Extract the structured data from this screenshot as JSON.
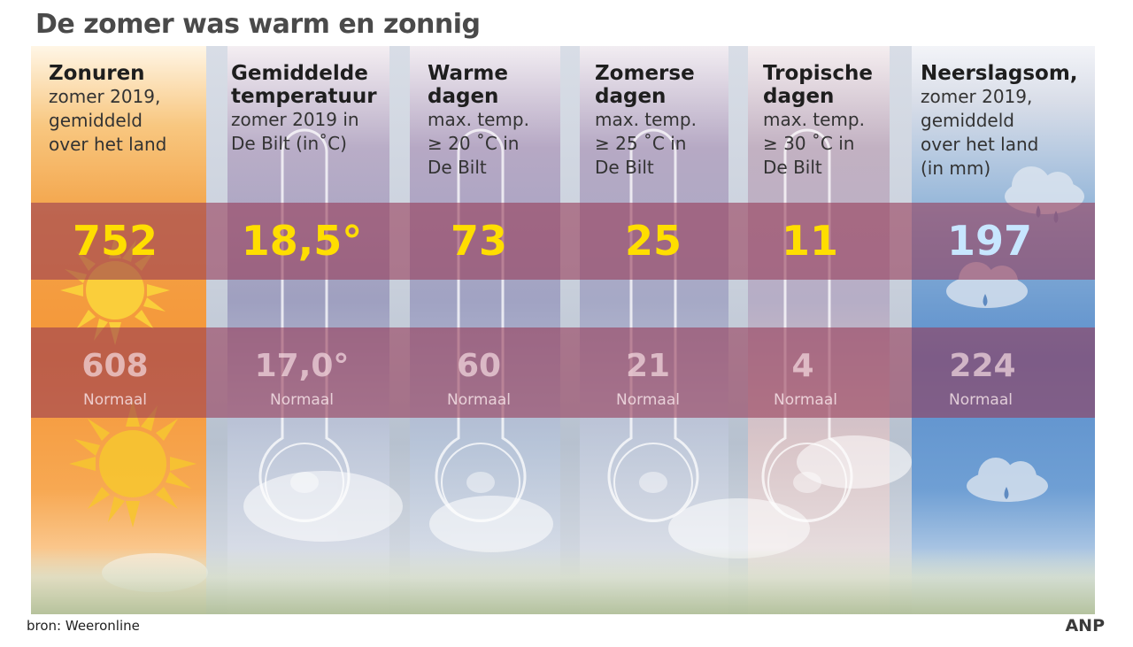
{
  "title": "De zomer was warm en zonnig",
  "source": "bron:  Weeronline",
  "logo": "ANP",
  "columns": [
    {
      "heading": "Zonuren",
      "sub": "zomer 2019,\ngemiddeld\nover het land",
      "value": "752",
      "normal": "608",
      "normal_label": "Normaal",
      "icon": "sun-icon"
    },
    {
      "heading": "Gemiddelde\ntemperatuur",
      "sub": "zomer 2019 in\nDe Bilt (in˚C)",
      "value": "18,5°",
      "normal": "17,0°",
      "normal_label": "Normaal",
      "icon": "thermometer-icon"
    },
    {
      "heading": "Warme\ndagen",
      "sub": "max. temp.\n≥ 20 ˚C in\nDe Bilt",
      "value": "73",
      "normal": "60",
      "normal_label": "Normaal",
      "icon": "thermometer-icon"
    },
    {
      "heading": "Zomerse\ndagen",
      "sub": "max. temp.\n≥ 25 ˚C in\nDe Bilt",
      "value": "25",
      "normal": "21",
      "normal_label": "Normaal",
      "icon": "thermometer-icon"
    },
    {
      "heading": "Tropische\ndagen",
      "sub": "max. temp.\n≥ 30 ˚C in\nDe Bilt",
      "value": "11",
      "normal": "4",
      "normal_label": "Normaal",
      "icon": "thermometer-icon"
    },
    {
      "heading": "Neerslagsom,",
      "sub": "zomer 2019,\ngemiddeld\nover het land\n(in mm)",
      "value": "197",
      "normal": "224",
      "normal_label": "Normaal",
      "icon": "rain-cloud-icon"
    }
  ],
  "chart_data": {
    "type": "table",
    "categories": [
      "Zonuren",
      "Gemiddelde temperatuur",
      "Warme dagen",
      "Zomerse dagen",
      "Tropische dagen",
      "Neerslagsom"
    ],
    "series": [
      {
        "values": [
          752,
          18.5,
          73,
          25,
          11,
          197
        ]
      },
      {
        "name": "Normaal",
        "values": [
          608,
          17.0,
          60,
          21,
          4,
          224
        ]
      }
    ]
  },
  "colors": {
    "value": "#ffde00",
    "rain_value": "#c7e6ff",
    "band": "#963755",
    "sun_column": "#f49638",
    "rain_column": "#5b8fcc"
  }
}
